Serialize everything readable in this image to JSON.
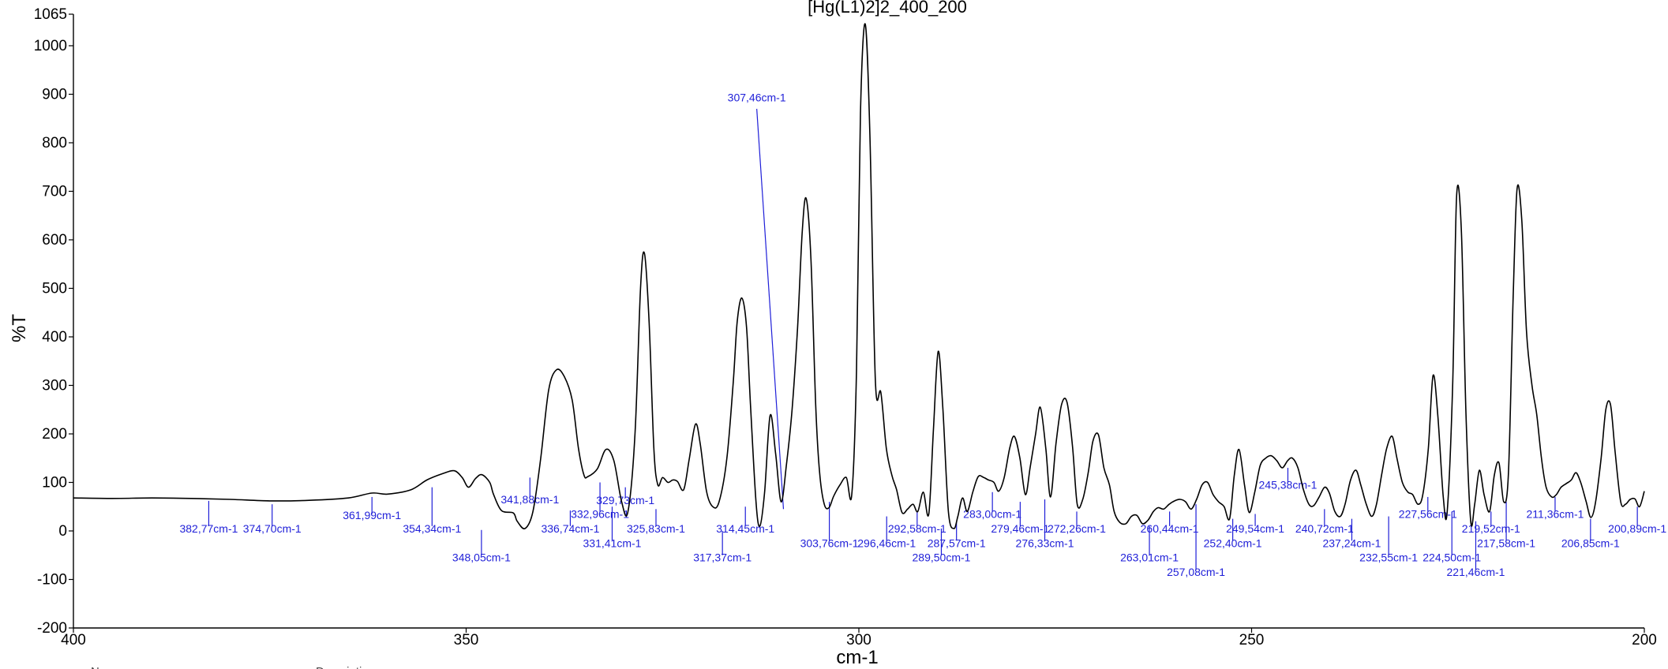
{
  "chart_data": {
    "type": "line",
    "title": "[Hg(L1)2]2_400_200",
    "xlabel": "cm-1",
    "ylabel": "%T",
    "xlim": [
      400,
      200
    ],
    "ylim": [
      -200,
      1065
    ],
    "x_ticks": [
      400,
      350,
      300,
      250,
      200
    ],
    "y_ticks": [
      1065,
      1000,
      900,
      800,
      700,
      600,
      500,
      400,
      300,
      200,
      100,
      0,
      -100,
      -200
    ],
    "grid": false,
    "legend": "none",
    "colors": {
      "line": "#000000",
      "annotation": "#1f1fd8"
    },
    "spectrum": [
      [
        400,
        68
      ],
      [
        395,
        67
      ],
      [
        390,
        68
      ],
      [
        385,
        67
      ],
      [
        380,
        65
      ],
      [
        375,
        62
      ],
      [
        370,
        63
      ],
      [
        365,
        68
      ],
      [
        362,
        78
      ],
      [
        360,
        76
      ],
      [
        357,
        85
      ],
      [
        355,
        105
      ],
      [
        353,
        118
      ],
      [
        351.5,
        124
      ],
      [
        350.5,
        110
      ],
      [
        349.7,
        90
      ],
      [
        348.8,
        108
      ],
      [
        348,
        116
      ],
      [
        347,
        100
      ],
      [
        346.5,
        75
      ],
      [
        345.5,
        42
      ],
      [
        344,
        37
      ],
      [
        343.5,
        20
      ],
      [
        342.5,
        5
      ],
      [
        341.5,
        40
      ],
      [
        340.5,
        150
      ],
      [
        339.5,
        290
      ],
      [
        338.5,
        332
      ],
      [
        337.5,
        318
      ],
      [
        336.5,
        270
      ],
      [
        335.7,
        170
      ],
      [
        335,
        115
      ],
      [
        334.5,
        112
      ],
      [
        333.3,
        128
      ],
      [
        332.2,
        168
      ],
      [
        331.2,
        145
      ],
      [
        330.2,
        60
      ],
      [
        329.4,
        40
      ],
      [
        328.5,
        200
      ],
      [
        327.8,
        500
      ],
      [
        327.3,
        572
      ],
      [
        326.7,
        430
      ],
      [
        326.1,
        170
      ],
      [
        325.6,
        95
      ],
      [
        325,
        110
      ],
      [
        324.3,
        100
      ],
      [
        323.7,
        105
      ],
      [
        323.1,
        102
      ],
      [
        322.3,
        85
      ],
      [
        321.6,
        148
      ],
      [
        320.8,
        220
      ],
      [
        320.2,
        180
      ],
      [
        319.4,
        82
      ],
      [
        318.6,
        50
      ],
      [
        317.8,
        60
      ],
      [
        316.8,
        150
      ],
      [
        316,
        305
      ],
      [
        315.5,
        430
      ],
      [
        314.9,
        480
      ],
      [
        314.3,
        420
      ],
      [
        313.8,
        260
      ],
      [
        313.1,
        60
      ],
      [
        312.6,
        10
      ],
      [
        312,
        80
      ],
      [
        311.3,
        238
      ],
      [
        310.6,
        160
      ],
      [
        309.9,
        60
      ],
      [
        309.2,
        140
      ],
      [
        308.5,
        250
      ],
      [
        307.8,
        420
      ],
      [
        307.2,
        620
      ],
      [
        306.7,
        685
      ],
      [
        306.1,
        560
      ],
      [
        305.5,
        260
      ],
      [
        305,
        120
      ],
      [
        304.4,
        55
      ],
      [
        303.8,
        48
      ],
      [
        303.2,
        72
      ],
      [
        302.4,
        95
      ],
      [
        301.6,
        110
      ],
      [
        300.9,
        75
      ],
      [
        300.3,
        330
      ],
      [
        299.8,
        860
      ],
      [
        299.2,
        1045
      ],
      [
        298.6,
        820
      ],
      [
        297.9,
        310
      ],
      [
        297.2,
        285
      ],
      [
        296.5,
        170
      ],
      [
        295.8,
        115
      ],
      [
        295.2,
        85
      ],
      [
        294.5,
        38
      ],
      [
        293.8,
        45
      ],
      [
        293.1,
        55
      ],
      [
        292.5,
        40
      ],
      [
        291.8,
        80
      ],
      [
        291.1,
        35
      ],
      [
        290.5,
        210
      ],
      [
        289.9,
        370
      ],
      [
        289.3,
        250
      ],
      [
        288.6,
        40
      ],
      [
        287.9,
        5
      ],
      [
        287.4,
        30
      ],
      [
        286.8,
        68
      ],
      [
        286.2,
        40
      ],
      [
        285.5,
        80
      ],
      [
        284.8,
        112
      ],
      [
        284.1,
        110
      ],
      [
        283.5,
        105
      ],
      [
        282.8,
        100
      ],
      [
        282.2,
        82
      ],
      [
        281.5,
        110
      ],
      [
        280.8,
        170
      ],
      [
        280.2,
        195
      ],
      [
        279.5,
        150
      ],
      [
        278.8,
        75
      ],
      [
        278.2,
        130
      ],
      [
        277.5,
        200
      ],
      [
        276.9,
        255
      ],
      [
        276.2,
        170
      ],
      [
        275.6,
        70
      ],
      [
        274.9,
        180
      ],
      [
        274.2,
        260
      ],
      [
        273.5,
        265
      ],
      [
        272.8,
        175
      ],
      [
        272.2,
        55
      ],
      [
        271.5,
        65
      ],
      [
        270.8,
        120
      ],
      [
        270.2,
        185
      ],
      [
        269.5,
        198
      ],
      [
        268.8,
        130
      ],
      [
        268.1,
        95
      ],
      [
        267.5,
        40
      ],
      [
        266.8,
        18
      ],
      [
        266,
        15
      ],
      [
        265.3,
        30
      ],
      [
        264.6,
        32
      ],
      [
        263.9,
        15
      ],
      [
        263.2,
        22
      ],
      [
        262.5,
        40
      ],
      [
        261.9,
        48
      ],
      [
        261.2,
        45
      ],
      [
        260.5,
        55
      ],
      [
        259.8,
        62
      ],
      [
        259.1,
        65
      ],
      [
        258.4,
        60
      ],
      [
        257.7,
        45
      ],
      [
        257,
        65
      ],
      [
        256.3,
        95
      ],
      [
        255.6,
        100
      ],
      [
        254.9,
        75
      ],
      [
        254.2,
        60
      ],
      [
        253.5,
        50
      ],
      [
        252.8,
        25
      ],
      [
        252.2,
        115
      ],
      [
        251.6,
        168
      ],
      [
        250.9,
        95
      ],
      [
        250.3,
        38
      ],
      [
        249.6,
        80
      ],
      [
        248.9,
        135
      ],
      [
        248.2,
        150
      ],
      [
        247.5,
        155
      ],
      [
        246.8,
        145
      ],
      [
        246.1,
        130
      ],
      [
        245.4,
        145
      ],
      [
        244.8,
        150
      ],
      [
        244.1,
        130
      ],
      [
        243.4,
        85
      ],
      [
        242.7,
        55
      ],
      [
        242.1,
        52
      ],
      [
        241.4,
        70
      ],
      [
        240.7,
        90
      ],
      [
        240.1,
        78
      ],
      [
        239.4,
        40
      ],
      [
        238.7,
        30
      ],
      [
        238.1,
        55
      ],
      [
        237.4,
        105
      ],
      [
        236.7,
        125
      ],
      [
        236.1,
        95
      ],
      [
        235.4,
        55
      ],
      [
        234.7,
        30
      ],
      [
        234.1,
        55
      ],
      [
        233.4,
        120
      ],
      [
        232.8,
        170
      ],
      [
        232.1,
        195
      ],
      [
        231.5,
        150
      ],
      [
        230.8,
        100
      ],
      [
        230.1,
        80
      ],
      [
        229.5,
        75
      ],
      [
        228.8,
        55
      ],
      [
        228.2,
        75
      ],
      [
        227.5,
        170
      ],
      [
        226.9,
        320
      ],
      [
        226.3,
        240
      ],
      [
        225.6,
        70
      ],
      [
        225.1,
        40
      ],
      [
        224.4,
        300
      ],
      [
        223.9,
        690
      ],
      [
        223.3,
        620
      ],
      [
        222.7,
        240
      ],
      [
        222.1,
        20
      ],
      [
        221.6,
        55
      ],
      [
        221,
        125
      ],
      [
        220.4,
        75
      ],
      [
        219.7,
        40
      ],
      [
        219.1,
        115
      ],
      [
        218.5,
        140
      ],
      [
        217.9,
        60
      ],
      [
        217.3,
        120
      ],
      [
        216.7,
        480
      ],
      [
        216.2,
        705
      ],
      [
        215.6,
        640
      ],
      [
        215,
        410
      ],
      [
        214.3,
        300
      ],
      [
        213.7,
        240
      ],
      [
        213.1,
        150
      ],
      [
        212.5,
        90
      ],
      [
        211.8,
        70
      ],
      [
        211.2,
        75
      ],
      [
        210.6,
        90
      ],
      [
        209.9,
        98
      ],
      [
        209.3,
        105
      ],
      [
        208.7,
        120
      ],
      [
        208.1,
        100
      ],
      [
        207.4,
        60
      ],
      [
        206.8,
        28
      ],
      [
        206.2,
        60
      ],
      [
        205.5,
        150
      ],
      [
        204.9,
        250
      ],
      [
        204.3,
        260
      ],
      [
        203.7,
        160
      ],
      [
        203,
        60
      ],
      [
        202.4,
        55
      ],
      [
        201.8,
        65
      ],
      [
        201.2,
        66
      ],
      [
        200.6,
        50
      ],
      [
        200,
        82
      ]
    ],
    "peak_labels": [
      {
        "text": "382,77cm-1",
        "x": 382.77,
        "y_top": 62,
        "y_bottom": 10,
        "label_y": -3
      },
      {
        "text": "374,70cm-1",
        "x": 374.7,
        "y_top": 55,
        "y_bottom": 10,
        "label_y": -3
      },
      {
        "text": "361,99cm-1",
        "x": 361.99,
        "y_top": 70,
        "y_bottom": 35,
        "label_y": 24
      },
      {
        "text": "354,34cm-1",
        "x": 354.34,
        "y_top": 90,
        "y_bottom": 10,
        "label_y": -3
      },
      {
        "text": "348,05cm-1",
        "x": 348.05,
        "y_top": 2,
        "y_bottom": -50,
        "label_y": -63
      },
      {
        "text": "341,88cm-1",
        "x": 341.88,
        "y_top": 110,
        "y_bottom": 70,
        "label_y": 57
      },
      {
        "text": "336,74cm-1",
        "x": 336.74,
        "y_top": 42,
        "y_bottom": 10,
        "label_y": -3
      },
      {
        "text": "332,96cm-1",
        "x": 332.96,
        "y_top": 100,
        "y_bottom": 40,
        "label_y": 27
      },
      {
        "text": "329,73cm-1",
        "x": 329.73,
        "y_top": 90,
        "y_bottom": 68,
        "label_y": 55
      },
      {
        "text": "331,41cm-1",
        "x": 331.41,
        "y_top": 50,
        "y_bottom": -20,
        "label_y": -33
      },
      {
        "text": "325,83cm-1",
        "x": 325.83,
        "y_top": 45,
        "y_bottom": 10,
        "label_y": -3
      },
      {
        "text": "317,37cm-1",
        "x": 317.37,
        "y_top": 0,
        "y_bottom": -50,
        "label_y": -63
      },
      {
        "text": "314,45cm-1",
        "x": 314.45,
        "y_top": 50,
        "y_bottom": 10,
        "label_y": -3
      },
      {
        "text": "307,46cm-1",
        "x": 309.6,
        "x_top": 313.0,
        "y_top": 870,
        "y_bottom": 45,
        "label_y": 885,
        "label_x": 313.0
      },
      {
        "text": "303,76cm-1",
        "x": 303.76,
        "y_top": 60,
        "y_bottom": -20,
        "label_y": -33
      },
      {
        "text": "296,46cm-1",
        "x": 296.46,
        "y_top": 30,
        "y_bottom": -20,
        "label_y": -33
      },
      {
        "text": "292,58cm-1",
        "x": 292.58,
        "y_top": 40,
        "y_bottom": 10,
        "label_y": -3
      },
      {
        "text": "289,50cm-1",
        "x": 289.5,
        "y_top": 5,
        "y_bottom": -50,
        "label_y": -63
      },
      {
        "text": "287,57cm-1",
        "x": 287.57,
        "y_top": 20,
        "y_bottom": -20,
        "label_y": -33
      },
      {
        "text": "283,00cm-1",
        "x": 283.0,
        "y_top": 80,
        "y_bottom": 40,
        "label_y": 27
      },
      {
        "text": "279,46cm-1",
        "x": 279.46,
        "y_top": 60,
        "y_bottom": 10,
        "label_y": -3
      },
      {
        "text": "276,33cm-1",
        "x": 276.33,
        "y_top": 65,
        "y_bottom": -20,
        "label_y": -33
      },
      {
        "text": "272,26cm-1",
        "x": 272.26,
        "y_top": 40,
        "y_bottom": 10,
        "label_y": -3
      },
      {
        "text": "263,01cm-1",
        "x": 263.01,
        "y_top": 10,
        "y_bottom": -50,
        "label_y": -63
      },
      {
        "text": "260,44cm-1",
        "x": 260.44,
        "y_top": 40,
        "y_bottom": 10,
        "label_y": -3
      },
      {
        "text": "257,08cm-1",
        "x": 257.08,
        "y_top": 55,
        "y_bottom": -80,
        "label_y": -93
      },
      {
        "text": "252,40cm-1",
        "x": 252.4,
        "y_top": 25,
        "y_bottom": -20,
        "label_y": -33
      },
      {
        "text": "249,54cm-1",
        "x": 249.54,
        "y_top": 35,
        "y_bottom": 10,
        "label_y": -3
      },
      {
        "text": "245,38cm-1",
        "x": 245.38,
        "y_top": 130,
        "y_bottom": 100,
        "label_y": 87
      },
      {
        "text": "240,72cm-1",
        "x": 240.72,
        "y_top": 45,
        "y_bottom": 10,
        "label_y": -3
      },
      {
        "text": "237,24cm-1",
        "x": 237.24,
        "y_top": 25,
        "y_bottom": -20,
        "label_y": -33
      },
      {
        "text": "232,55cm-1",
        "x": 232.55,
        "y_top": 30,
        "y_bottom": -50,
        "label_y": -63
      },
      {
        "text": "227,56cm-1",
        "x": 227.56,
        "y_top": 70,
        "y_bottom": 40,
        "label_y": 27
      },
      {
        "text": "224,50cm-1",
        "x": 224.5,
        "y_top": 40,
        "y_bottom": -50,
        "label_y": -63
      },
      {
        "text": "221,46cm-1",
        "x": 221.46,
        "y_top": 20,
        "y_bottom": -80,
        "label_y": -93
      },
      {
        "text": "219,52cm-1",
        "x": 219.52,
        "y_top": 40,
        "y_bottom": 10,
        "label_y": -3
      },
      {
        "text": "217,58cm-1",
        "x": 217.58,
        "y_top": 60,
        "y_bottom": -20,
        "label_y": -33
      },
      {
        "text": "211,36cm-1",
        "x": 211.36,
        "y_top": 70,
        "y_bottom": 40,
        "label_y": 27
      },
      {
        "text": "206,85cm-1",
        "x": 206.85,
        "y_top": 25,
        "y_bottom": -20,
        "label_y": -33
      },
      {
        "text": "200,89cm-1",
        "x": 200.89,
        "y_top": 50,
        "y_bottom": 10,
        "label_y": -3
      }
    ],
    "footer_labels": [
      "N",
      "Description"
    ]
  }
}
